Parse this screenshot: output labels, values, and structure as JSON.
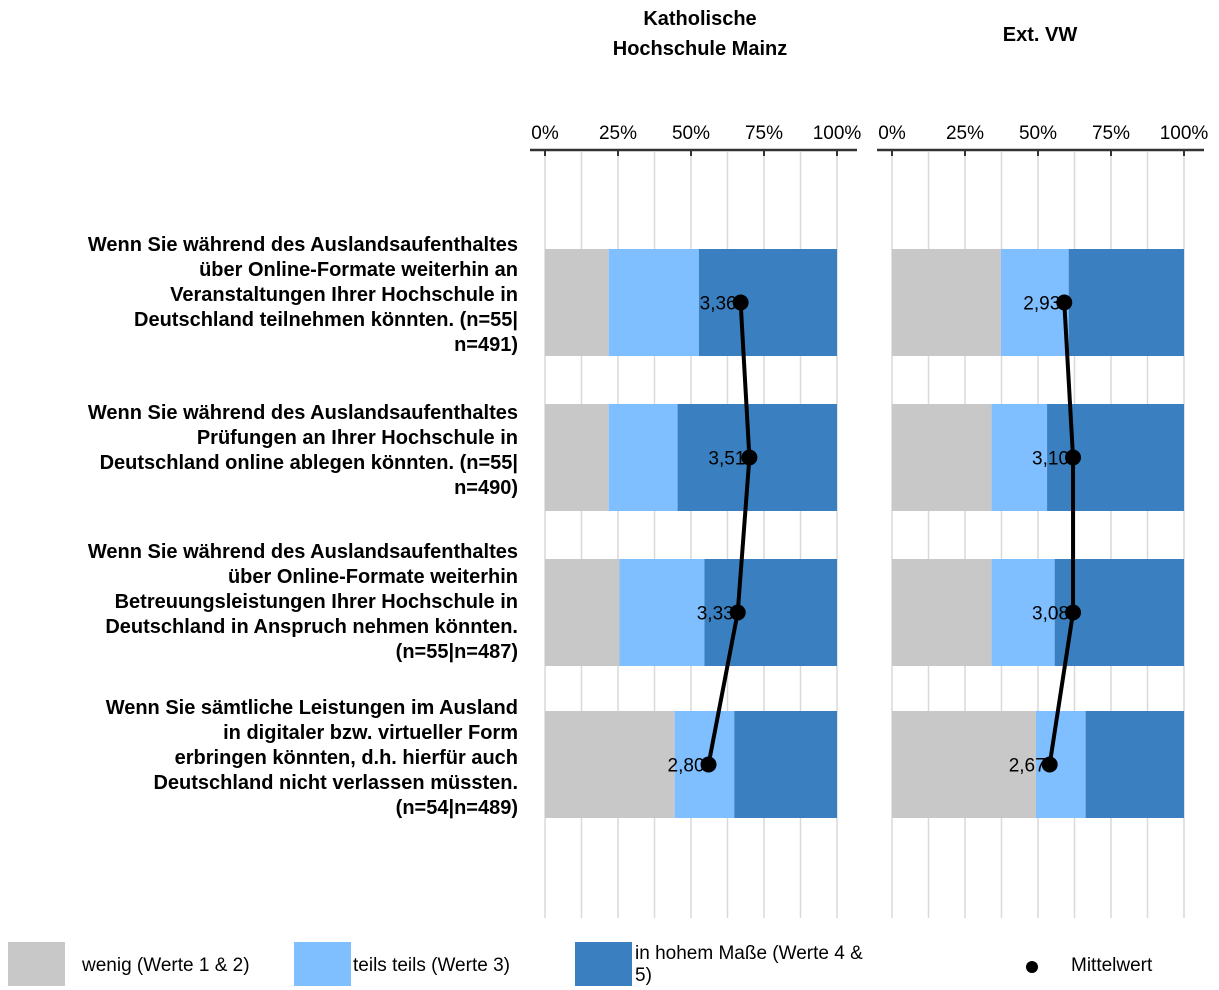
{
  "chart_data": {
    "type": "bar",
    "stacked": true,
    "orientation": "horizontal",
    "value_axis": {
      "min": 0,
      "max": 100,
      "ticks": [
        "0%",
        "25%",
        "50%",
        "75%",
        "100%"
      ],
      "gridlines": true
    },
    "categories": [
      "Wenn Sie während des Auslandsaufenthaltes über Online-Formate weiterhin an Veranstaltungen Ihrer Hochschule in Deutschland teilnehmen könnten. (n=55|n=491)",
      "Wenn Sie während des Auslandsaufenthaltes Prüfungen an Ihrer Hochschule in Deutschland online ablegen könnten. (n=55|n=490)",
      "Wenn Sie während des Auslandsaufenthaltes über Online-Formate weiterhin Betreuungsleistungen Ihrer Hochschule in Deutschland in Anspruch nehmen könnten. (n=55|n=487)",
      "Wenn Sie sämtliche Leistungen im Ausland in digitaler bzw. virtueller Form erbringen könnten, d.h. hierfür auch Deutschland nicht verlassen müssten. (n=54|n=489)"
    ],
    "category_lines": [
      [
        "Wenn Sie während des Auslandsaufenthaltes",
        "über Online-Formate weiterhin an",
        "Veranstaltungen Ihrer Hochschule in",
        "Deutschland teilnehmen könnten. (n=55|",
        "n=491)"
      ],
      [
        "Wenn Sie während des Auslandsaufenthaltes",
        "Prüfungen an Ihrer Hochschule in",
        "Deutschland online ablegen könnten. (n=55|",
        "n=490)"
      ],
      [
        "Wenn Sie während des Auslandsaufenthaltes",
        "über Online-Formate weiterhin",
        "Betreuungsleistungen Ihrer Hochschule in",
        "Deutschland in Anspruch nehmen könnten.",
        "(n=55|n=487)"
      ],
      [
        "Wenn Sie sämtliche Leistungen im Ausland",
        "in digitaler bzw. virtueller Form",
        "erbringen könnten, d.h. hierfür auch",
        "Deutschland nicht verlassen müssten.",
        "(n=54|n=489)"
      ]
    ],
    "panels": [
      {
        "title_lines": [
          "Katholische",
          "Hochschule Mainz"
        ],
        "series": [
          {
            "name": "wenig (Werte 1 & 2)",
            "values": [
              21.8,
              21.8,
              25.5,
              44.4
            ]
          },
          {
            "name": "teils teils (Werte 3)",
            "values": [
              30.9,
              23.6,
              29.1,
              20.4
            ]
          },
          {
            "name": "in hohem Maße (Werte 4 & 5)",
            "values": [
              47.3,
              54.6,
              45.4,
              35.2
            ]
          }
        ],
        "mean_labels": [
          "3,36",
          "3,51",
          "3,33",
          "2,80"
        ],
        "mean_position_pct": [
          67,
          70,
          66,
          56
        ]
      },
      {
        "title_lines": [
          "Ext. VW"
        ],
        "series": [
          {
            "name": "wenig (Werte 1 & 2)",
            "values": [
              37.3,
              34.1,
              34.1,
              49.3
            ]
          },
          {
            "name": "teils teils (Werte 3)",
            "values": [
              23.2,
              19.0,
              21.6,
              17.0
            ]
          },
          {
            "name": "in hohem Maße (Werte 4 & 5)",
            "values": [
              39.5,
              46.9,
              44.3,
              33.7
            ]
          }
        ],
        "mean_labels": [
          "2,93",
          "3,10",
          "3,08",
          "2,67"
        ],
        "mean_position_pct": [
          59,
          62,
          62,
          54
        ]
      }
    ],
    "colors": {
      "wenig": "#c8c8c8",
      "teils": "#7fbfff",
      "hoch": "#3a80c0",
      "mean": "#000000",
      "grid": "#d9d9d9"
    }
  },
  "legend": {
    "wenig": "wenig (Werte 1 & 2)",
    "teils": "teils teils (Werte 3)",
    "hoch_line1": "in hohem Maße (Werte 4 &",
    "hoch_line2": "5)",
    "mittelwert": "Mittelwert"
  }
}
